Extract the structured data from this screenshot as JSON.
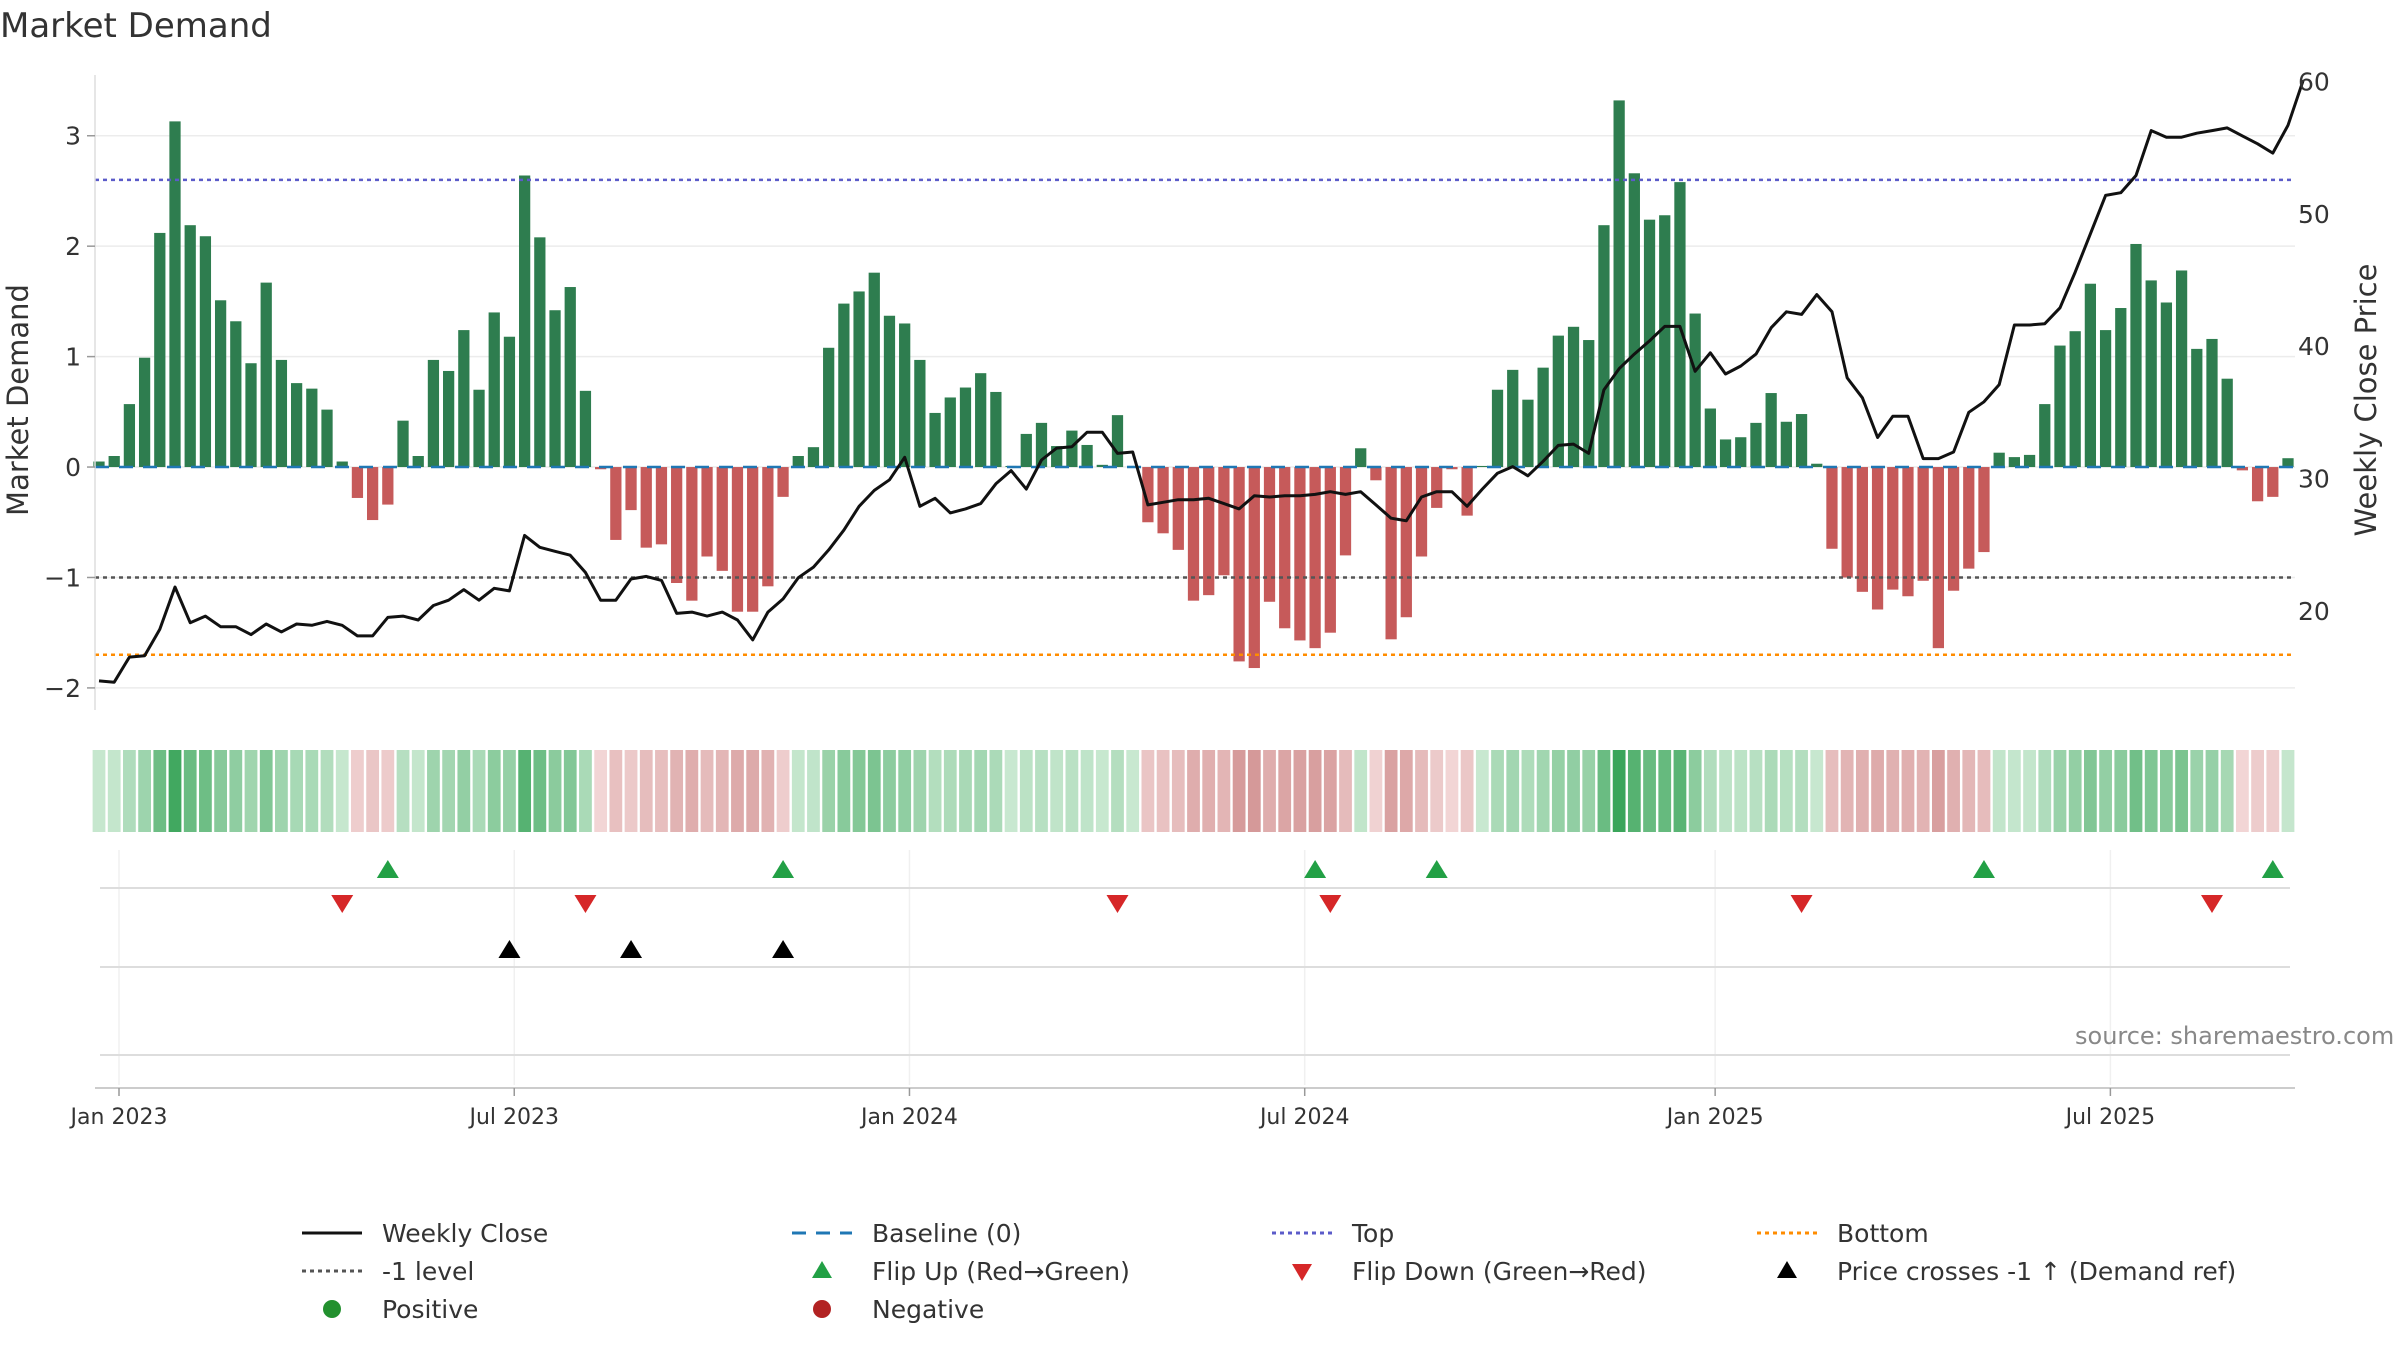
{
  "title": "Market Demand",
  "watermark": "source: sharemaestro.com",
  "colors": {
    "positive_bar": "#2e7d4f",
    "negative_bar": "#c65a5a",
    "price_line": "#111111",
    "baseline": "#1f77b4",
    "top_line": "#5b5bc9",
    "minus_one_line": "#555555",
    "bottom_line": "#ff8c00",
    "flip_up": "#22a045",
    "flip_down": "#d62728",
    "price_cross": "#000000"
  },
  "chart_data": {
    "type": "bar+line",
    "title": "Market Demand",
    "ylabel_left": "Market Demand",
    "ylabel_right": "Weekly Close Price",
    "ylim_left": [
      -2.2,
      3.55
    ],
    "ylim_right": [
      12.5,
      60.5
    ],
    "yticks_left": [
      "3",
      "2",
      "1",
      "0",
      "−1",
      "−2"
    ],
    "yticks_left_values": [
      3,
      2,
      1,
      0,
      -1,
      -2
    ],
    "yticks_right": [
      "60",
      "50",
      "40",
      "30",
      "20"
    ],
    "yticks_right_values": [
      60,
      50,
      40,
      30,
      20
    ],
    "xticks": [
      "Jan 2023",
      "Jul 2023",
      "Jan 2024",
      "Jul 2024",
      "Jan 2025",
      "Jul 2025"
    ],
    "xticks_week_index": [
      0,
      26,
      52,
      78,
      105,
      131
    ],
    "reference_lines": {
      "top": 2.6,
      "minus_one": -1.0,
      "bottom": -1.7,
      "baseline": 0
    },
    "demand": [
      0.05,
      0.1,
      0.57,
      0.99,
      2.12,
      3.13,
      2.19,
      2.09,
      1.51,
      1.32,
      0.94,
      1.67,
      0.97,
      0.76,
      0.71,
      0.52,
      0.05,
      -0.28,
      -0.48,
      -0.34,
      0.42,
      0.1,
      0.97,
      0.87,
      1.24,
      0.7,
      1.4,
      1.18,
      2.64,
      2.08,
      1.42,
      1.63,
      0.69,
      -0.02,
      -0.66,
      -0.39,
      -0.73,
      -0.7,
      -1.05,
      -1.21,
      -0.81,
      -0.94,
      -1.31,
      -1.31,
      -1.08,
      -0.27,
      0.1,
      0.18,
      1.08,
      1.48,
      1.59,
      1.76,
      1.37,
      1.3,
      0.97,
      0.49,
      0.63,
      0.72,
      0.85,
      0.68,
      0.01,
      0.3,
      0.4,
      0.19,
      0.33,
      0.2,
      0.02,
      0.47,
      0.01,
      -0.5,
      -0.6,
      -0.75,
      -1.21,
      -1.16,
      -0.98,
      -1.76,
      -1.82,
      -1.22,
      -1.46,
      -1.57,
      -1.64,
      -1.5,
      -0.8,
      0.17,
      -0.12,
      -1.56,
      -1.36,
      -0.81,
      -0.37,
      -0.02,
      -0.44,
      0.01,
      0.7,
      0.88,
      0.61,
      0.9,
      1.19,
      1.27,
      1.15,
      2.19,
      3.32,
      2.66,
      2.24,
      2.28,
      2.58,
      1.39,
      0.53,
      0.25,
      0.27,
      0.4,
      0.67,
      0.41,
      0.48,
      0.03,
      -0.74,
      -1.0,
      -1.13,
      -1.29,
      -1.11,
      -1.17,
      -1.03,
      -1.64,
      -1.12,
      -0.92,
      -0.77,
      0.13,
      0.09,
      0.11,
      0.57,
      1.1,
      1.23,
      1.66,
      1.24,
      1.44,
      2.02,
      1.69,
      1.49,
      1.78,
      1.07,
      1.16,
      0.8,
      -0.03,
      -0.31,
      -0.27,
      0.08
    ],
    "weekly_close": [
      14.7,
      14.6,
      16.5,
      16.6,
      18.6,
      21.8,
      19.1,
      19.6,
      18.8,
      18.8,
      18.2,
      19.0,
      18.4,
      19.0,
      18.9,
      19.2,
      18.9,
      18.1,
      18.1,
      19.5,
      19.6,
      19.3,
      20.4,
      20.8,
      21.6,
      20.8,
      21.7,
      21.5,
      25.7,
      24.8,
      24.5,
      24.2,
      22.9,
      20.8,
      20.8,
      22.4,
      22.6,
      22.3,
      19.8,
      19.9,
      19.6,
      19.9,
      19.3,
      17.8,
      19.9,
      20.9,
      22.5,
      23.3,
      24.6,
      26.1,
      27.9,
      29.1,
      29.9,
      31.6,
      27.9,
      28.5,
      27.4,
      27.7,
      28.1,
      29.6,
      30.6,
      29.2,
      31.4,
      32.3,
      32.4,
      33.5,
      33.5,
      31.9,
      32.0,
      28.0,
      28.2,
      28.4,
      28.4,
      28.5,
      28.1,
      27.7,
      28.7,
      28.6,
      28.7,
      28.7,
      28.8,
      29.0,
      28.8,
      29.0,
      28.0,
      27.0,
      26.8,
      28.6,
      29.0,
      29.0,
      27.9,
      29.2,
      30.4,
      30.9,
      30.2,
      31.3,
      32.5,
      32.6,
      31.9,
      36.7,
      38.3,
      39.4,
      40.4,
      41.5,
      41.5,
      38.1,
      39.5,
      37.9,
      38.5,
      39.4,
      41.4,
      42.6,
      42.4,
      43.9,
      42.6,
      37.6,
      36.1,
      33.1,
      34.7,
      34.7,
      31.5,
      31.5,
      32.0,
      35.0,
      35.8,
      37.1,
      41.6,
      41.6,
      41.7,
      42.9,
      45.6,
      48.5,
      51.4,
      51.6,
      52.9,
      56.3,
      55.8,
      55.8,
      56.1,
      56.3,
      56.5,
      55.9,
      55.3,
      54.6,
      56.7,
      60.1
    ],
    "flip_up_week_index": [
      19,
      45,
      80,
      88,
      124,
      143
    ],
    "flip_down_week_index": [
      16,
      32,
      67,
      81,
      112,
      139
    ],
    "price_crosses_week_index": [
      27,
      35,
      45
    ],
    "demand_heat_strip": "per-week intensity of Market Demand (green positive, red negative)"
  },
  "legend": [
    {
      "label": "Weekly Close",
      "symbol": "solid-line"
    },
    {
      "label": "Baseline (0)",
      "symbol": "dashed-line"
    },
    {
      "label": "Top",
      "symbol": "dotted-line-top"
    },
    {
      "label": "Bottom",
      "symbol": "dotted-line-bottom"
    },
    {
      "label": "-1 level",
      "symbol": "dotted-line-minus"
    },
    {
      "label": "Flip Up (Red→Green)",
      "symbol": "triangle-up-green"
    },
    {
      "label": "Flip Down (Green→Red)",
      "symbol": "triangle-down-red"
    },
    {
      "label": "Price crosses -1 ↑ (Demand ref)",
      "symbol": "triangle-up-black"
    },
    {
      "label": "Positive",
      "symbol": "circle-green"
    },
    {
      "label": "Negative",
      "symbol": "circle-red"
    }
  ]
}
